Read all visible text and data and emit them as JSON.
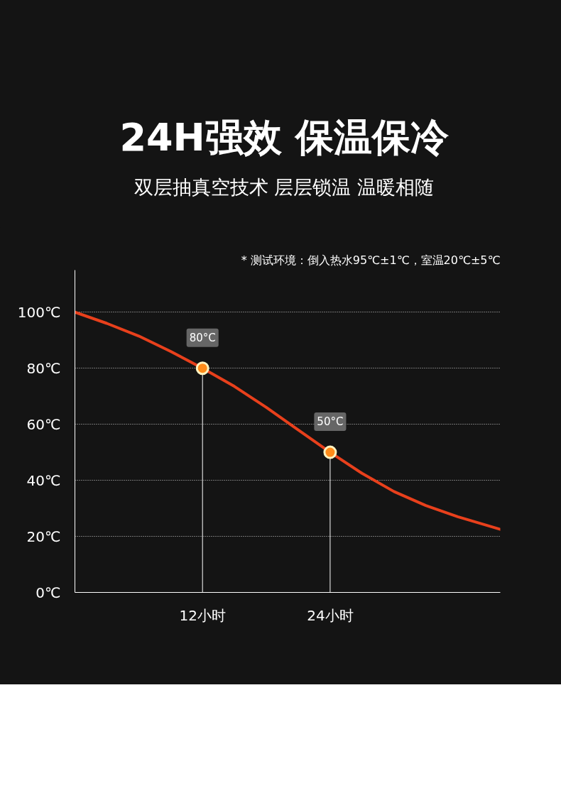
{
  "chart_data": {
    "type": "line",
    "title": "24H强效 保温保冷",
    "subtitle": "双层抽真空技术 层层锁温 温暖相随",
    "x": [
      0,
      3,
      6,
      9,
      12,
      15,
      18,
      21,
      24,
      27,
      30,
      33,
      36,
      40
    ],
    "series": [
      {
        "color": "#e8401c",
        "values": [
          100,
          96,
          91.5,
          86,
          80,
          73.5,
          66,
          58,
          50,
          42.5,
          36,
          31,
          27,
          22.5
        ]
      }
    ],
    "xlim": [
      0,
      40
    ],
    "ylim": [
      0,
      115
    ],
    "xticks": [
      {
        "value": 12,
        "label": "12小时"
      },
      {
        "value": 24,
        "label": "24小时"
      }
    ],
    "yticks": [
      {
        "value": 0,
        "label": "0℃"
      },
      {
        "value": 20,
        "label": "20℃"
      },
      {
        "value": 40,
        "label": "40℃"
      },
      {
        "value": 60,
        "label": "60℃"
      },
      {
        "value": 80,
        "label": "80℃"
      },
      {
        "value": 100,
        "label": "100℃"
      }
    ],
    "grid": "y",
    "marker": "none",
    "line_style": "solid",
    "ref_lines": [
      {
        "axis": "x",
        "value": 12,
        "color": "#ffffff"
      },
      {
        "axis": "x",
        "value": 24,
        "color": "#ffffff"
      }
    ],
    "annotations": [
      "* 测试环境：倒入热水95℃±1℃，室温20℃±5℃",
      {
        "text": "80°C",
        "x": 12,
        "y": 80
      },
      {
        "text": "50°C",
        "x": 24,
        "y": 50
      }
    ]
  }
}
